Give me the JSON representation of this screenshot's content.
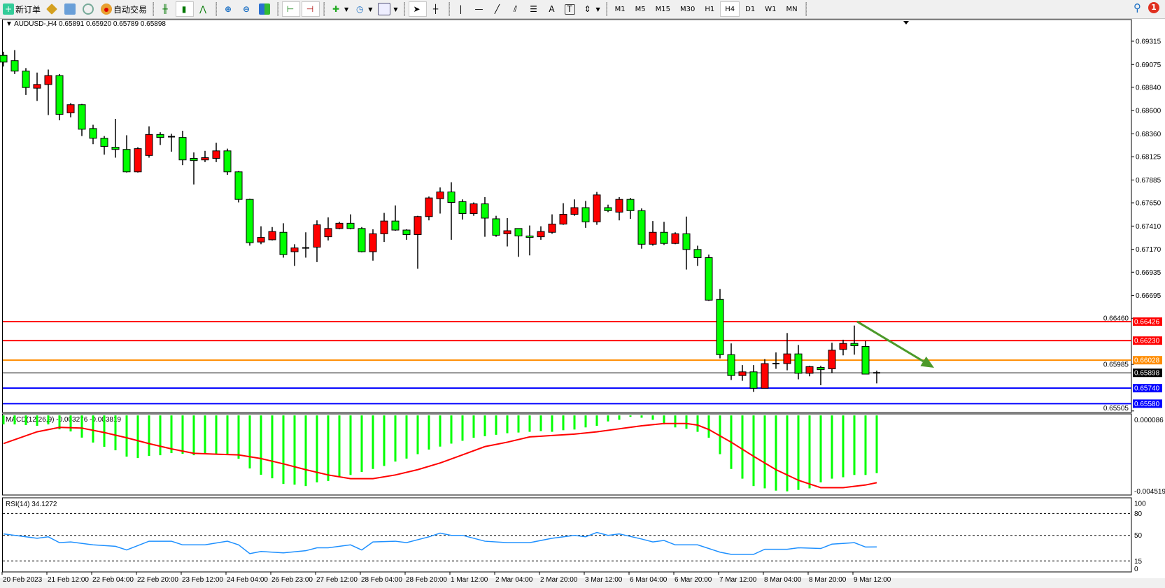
{
  "toolbar": {
    "new_order": "新订单",
    "auto_trading": "自动交易",
    "timeframes": [
      "M1",
      "M5",
      "M15",
      "M30",
      "H1",
      "H4",
      "D1",
      "W1",
      "MN"
    ],
    "active_timeframe": "H4",
    "notification_count": "1",
    "icons": [
      "gold-icon",
      "history-icon",
      "signal-icon",
      "bar-chart-icon",
      "candlestick-icon",
      "line-chart-icon",
      "zoom-in-icon",
      "zoom-out-icon",
      "tile-windows-icon",
      "auto-scroll-icon",
      "chart-shift-icon",
      "indicators-icon",
      "periods-icon",
      "templates-icon",
      "cursor-icon",
      "crosshair-icon",
      "vertical-line-icon",
      "horizontal-line-icon",
      "trendline-icon",
      "fibonacci-icon",
      "channel-icon",
      "text-icon",
      "text-label-icon",
      "arrows-icon"
    ]
  },
  "chart": {
    "symbol": "AUDUSD-,H4",
    "ohlc": "0.65891 0.65920 0.65789 0.65898",
    "colors": {
      "bull": "#ff0000",
      "bear": "#00ff00",
      "outline": "#000000",
      "arrow": "#4c9a2a"
    },
    "price_ticks": [
      "0.69315",
      "0.69075",
      "0.68840",
      "0.68600",
      "0.68360",
      "0.68125",
      "0.67885",
      "0.67650",
      "0.67410",
      "0.67170",
      "0.66935",
      "0.66695",
      "0.66460",
      "0.65985",
      "0.65505"
    ],
    "levels": [
      {
        "price": "0.66426",
        "color": "#ff0000"
      },
      {
        "price": "0.66230",
        "color": "#ff0000"
      },
      {
        "price": "0.66028",
        "color": "#ff8c00"
      },
      {
        "price": "0.65898",
        "color": "#000000"
      },
      {
        "price": "0.65740",
        "color": "#0000ff"
      },
      {
        "price": "0.65580",
        "color": "#0000ff"
      }
    ],
    "arrow": {
      "direction": "down",
      "from_bar": 77,
      "from_price": 0.66426,
      "to_bar": 84,
      "to_price": 0.6595
    },
    "time_labels": [
      {
        "bar": 1,
        "label": "20 Feb 2023"
      },
      {
        "bar": 5,
        "label": "21 Feb 12:00"
      },
      {
        "bar": 9,
        "label": "22 Feb 04:00"
      },
      {
        "bar": 13,
        "label": "22 Feb 20:00"
      },
      {
        "bar": 17,
        "label": "23 Feb 12:00"
      },
      {
        "bar": 21,
        "label": "24 Feb 04:00"
      },
      {
        "bar": 25,
        "label": "26 Feb 23:00"
      },
      {
        "bar": 29,
        "label": "27 Feb 12:00"
      },
      {
        "bar": 33,
        "label": "28 Feb 04:00"
      },
      {
        "bar": 37,
        "label": "28 Feb 20:00"
      },
      {
        "bar": 41,
        "label": "1 Mar 12:00"
      },
      {
        "bar": 45,
        "label": "2 Mar 04:00"
      },
      {
        "bar": 49,
        "label": "2 Mar 20:00"
      },
      {
        "bar": 53,
        "label": "3 Mar 12:00"
      },
      {
        "bar": 57,
        "label": "6 Mar 04:00"
      },
      {
        "bar": 61,
        "label": "6 Mar 20:00"
      },
      {
        "bar": 65,
        "label": "7 Mar 12:00"
      },
      {
        "bar": 69,
        "label": "8 Mar 04:00"
      },
      {
        "bar": 73,
        "label": "8 Mar 20:00"
      },
      {
        "bar": 77,
        "label": "9 Mar 12:00"
      }
    ]
  },
  "chart_data": [
    {
      "type": "candlestick",
      "ylim": [
        0.65489,
        0.69538
      ],
      "candles_ohlc": [
        [
          0.69169,
          0.69207,
          0.69054,
          0.691
        ],
        [
          0.69115,
          0.69223,
          0.68977,
          0.69007
        ],
        [
          0.69007,
          0.69038,
          0.68761,
          0.68838
        ],
        [
          0.68831,
          0.68992,
          0.687,
          0.68869
        ],
        [
          0.68869,
          0.69023,
          0.68554,
          0.68961
        ],
        [
          0.68961,
          0.68977,
          0.685,
          0.68561
        ],
        [
          0.68577,
          0.68677,
          0.68531,
          0.68661
        ],
        [
          0.68661,
          0.68669,
          0.68338,
          0.68408
        ],
        [
          0.68415,
          0.68454,
          0.68254,
          0.68315
        ],
        [
          0.68315,
          0.68338,
          0.68146,
          0.68231
        ],
        [
          0.68223,
          0.68515,
          0.68115,
          0.682
        ],
        [
          0.682,
          0.68346,
          0.67962,
          0.67969
        ],
        [
          0.67969,
          0.68223,
          0.67962,
          0.68208
        ],
        [
          0.68138,
          0.68438,
          0.68115,
          0.68354
        ],
        [
          0.68354,
          0.68377,
          0.68246,
          0.68323
        ],
        [
          0.68331,
          0.68361,
          0.68177,
          0.68323
        ],
        [
          0.68323,
          0.68392,
          0.68038,
          0.68092
        ],
        [
          0.68108,
          0.68169,
          0.67839,
          0.68085
        ],
        [
          0.68092,
          0.68185,
          0.68069,
          0.68115
        ],
        [
          0.68108,
          0.68269,
          0.68069,
          0.68185
        ],
        [
          0.68185,
          0.68208,
          0.67938,
          0.67969
        ],
        [
          0.67969,
          0.67977,
          0.67654,
          0.67685
        ],
        [
          0.67685,
          0.67692,
          0.67208,
          0.67239
        ],
        [
          0.67246,
          0.67408,
          0.67223,
          0.67293
        ],
        [
          0.67269,
          0.674,
          0.67262,
          0.67354
        ],
        [
          0.67346,
          0.67439,
          0.67085,
          0.67116
        ],
        [
          0.67146,
          0.67223,
          0.67,
          0.67185
        ],
        [
          0.67185,
          0.67346,
          0.67085,
          0.67177
        ],
        [
          0.67193,
          0.67469,
          0.67039,
          0.67423
        ],
        [
          0.673,
          0.675,
          0.67262,
          0.67385
        ],
        [
          0.67385,
          0.67454,
          0.67377,
          0.67439
        ],
        [
          0.67439,
          0.67531,
          0.67377,
          0.67385
        ],
        [
          0.67385,
          0.674,
          0.67139,
          0.67146
        ],
        [
          0.67146,
          0.67377,
          0.67054,
          0.67331
        ],
        [
          0.67331,
          0.67546,
          0.67246,
          0.67462
        ],
        [
          0.67462,
          0.67623,
          0.67362,
          0.67369
        ],
        [
          0.67369,
          0.67377,
          0.67269,
          0.67323
        ],
        [
          0.67323,
          0.67516,
          0.6697,
          0.67508
        ],
        [
          0.67508,
          0.67715,
          0.67469,
          0.677
        ],
        [
          0.67692,
          0.67808,
          0.67539,
          0.67762
        ],
        [
          0.67762,
          0.67862,
          0.67269,
          0.67654
        ],
        [
          0.67662,
          0.67685,
          0.67477,
          0.67539
        ],
        [
          0.67539,
          0.67654,
          0.67516,
          0.67639
        ],
        [
          0.67639,
          0.67708,
          0.673,
          0.67492
        ],
        [
          0.67485,
          0.67516,
          0.673,
          0.67316
        ],
        [
          0.67331,
          0.67492,
          0.672,
          0.67362
        ],
        [
          0.67385,
          0.67385,
          0.67093,
          0.67308
        ],
        [
          0.67308,
          0.67416,
          0.67108,
          0.67293
        ],
        [
          0.673,
          0.67408,
          0.67269,
          0.67354
        ],
        [
          0.67346,
          0.67531,
          0.67331,
          0.67431
        ],
        [
          0.67431,
          0.67646,
          0.67423,
          0.67531
        ],
        [
          0.67531,
          0.67685,
          0.67516,
          0.676
        ],
        [
          0.676,
          0.67669,
          0.67392,
          0.67454
        ],
        [
          0.67454,
          0.67762,
          0.67423,
          0.67731
        ],
        [
          0.676,
          0.67631,
          0.67554,
          0.67569
        ],
        [
          0.67554,
          0.67708,
          0.67469,
          0.67685
        ],
        [
          0.67685,
          0.677,
          0.67485,
          0.67569
        ],
        [
          0.67569,
          0.67592,
          0.67177,
          0.67223
        ],
        [
          0.67223,
          0.67462,
          0.67208,
          0.67346
        ],
        [
          0.67346,
          0.67454,
          0.67216,
          0.67231
        ],
        [
          0.67231,
          0.67346,
          0.67223,
          0.67331
        ],
        [
          0.67331,
          0.67508,
          0.66962,
          0.67169
        ],
        [
          0.67169,
          0.67208,
          0.67,
          0.67085
        ],
        [
          0.67085,
          0.67116,
          0.66639,
          0.66647
        ],
        [
          0.66654,
          0.66762,
          0.66047,
          0.66085
        ],
        [
          0.66085,
          0.66201,
          0.65824,
          0.6587
        ],
        [
          0.6587,
          0.65978,
          0.65816,
          0.65908
        ],
        [
          0.65908,
          0.65978,
          0.65701,
          0.65739
        ],
        [
          0.65739,
          0.66039,
          0.65739,
          0.65993
        ],
        [
          0.65993,
          0.66108,
          0.65939,
          0.65993
        ],
        [
          0.65993,
          0.66308,
          0.65924,
          0.66093
        ],
        [
          0.66093,
          0.66185,
          0.65831,
          0.65893
        ],
        [
          0.65893,
          0.6597,
          0.65862,
          0.65962
        ],
        [
          0.65954,
          0.6597,
          0.6577,
          0.65931
        ],
        [
          0.65939,
          0.66208,
          0.65893,
          0.66131
        ],
        [
          0.66139,
          0.66239,
          0.66078,
          0.66201
        ],
        [
          0.66201,
          0.66385,
          0.66085,
          0.66177
        ],
        [
          0.6617,
          0.66224,
          0.65885,
          0.65885
        ],
        [
          0.65891,
          0.6592,
          0.65789,
          0.65898
        ]
      ]
    },
    {
      "type": "bar",
      "title": "MACD(12,26,9) -0.003276 -0.003819",
      "ylim": [
        -0.004519,
        8.6e-05
      ],
      "ytick_labels": [
        "0.000086",
        "-0.004519"
      ],
      "macd": [
        -0.00051,
        -0.00051,
        -0.00055,
        -0.00059,
        -0.00051,
        -0.00079,
        -0.00091,
        -0.00126,
        -0.00154,
        -0.00178,
        -0.00198,
        -0.00234,
        -0.00242,
        -0.0023,
        -0.00226,
        -0.00214,
        -0.00218,
        -0.00226,
        -0.00218,
        -0.00218,
        -0.00218,
        -0.00246,
        -0.00301,
        -0.00337,
        -0.00357,
        -0.00389,
        -0.00393,
        -0.00401,
        -0.0038,
        -0.00372,
        -0.00351,
        -0.00338,
        -0.00321,
        -0.00304,
        -0.00287,
        -0.00262,
        -0.00245,
        -0.0022,
        -0.00194,
        -0.00177,
        -0.0016,
        -0.00144,
        -0.00127,
        -0.00118,
        -0.0011,
        -0.00101,
        -0.00097,
        -0.00093,
        -0.00089,
        -0.00093,
        -0.00084,
        -0.0008,
        -0.00068,
        -0.00059,
        -0.00034,
        -0.00025,
        -8e-05,
        -0.00013,
        -0.00025,
        -0.00051,
        -0.00068,
        -0.00076,
        -0.00093,
        -0.00127,
        -0.0022,
        -0.00304,
        -0.00359,
        -0.00401,
        -0.00414,
        -0.00427,
        -0.00431,
        -0.00423,
        -0.00414,
        -0.0038,
        -0.00359,
        -0.00351,
        -0.00338,
        -0.00338,
        -0.003276
      ],
      "signal": [
        [
          1,
          -0.0016
        ],
        [
          4,
          -0.00093
        ],
        [
          6,
          -0.00068
        ],
        [
          8,
          -0.00072
        ],
        [
          10,
          -0.00097
        ],
        [
          12,
          -0.00127
        ],
        [
          14,
          -0.0016
        ],
        [
          16,
          -0.0019
        ],
        [
          18,
          -0.00215
        ],
        [
          20,
          -0.0022
        ],
        [
          22,
          -0.00224
        ],
        [
          24,
          -0.00245
        ],
        [
          26,
          -0.00275
        ],
        [
          28,
          -0.00308
        ],
        [
          30,
          -0.00338
        ],
        [
          32,
          -0.00359
        ],
        [
          34,
          -0.00359
        ],
        [
          36,
          -0.00338
        ],
        [
          38,
          -0.00308
        ],
        [
          40,
          -0.0027
        ],
        [
          42,
          -0.00224
        ],
        [
          44,
          -0.00177
        ],
        [
          46,
          -0.00152
        ],
        [
          48,
          -0.00122
        ],
        [
          50,
          -0.00114
        ],
        [
          52,
          -0.00106
        ],
        [
          54,
          -0.00093
        ],
        [
          56,
          -0.00076
        ],
        [
          58,
          -0.00059
        ],
        [
          60,
          -0.00046
        ],
        [
          62,
          -0.00046
        ],
        [
          63,
          -0.00055
        ],
        [
          64,
          -0.0008
        ],
        [
          66,
          -0.00152
        ],
        [
          68,
          -0.00232
        ],
        [
          70,
          -0.00308
        ],
        [
          72,
          -0.00368
        ],
        [
          74,
          -0.0041
        ],
        [
          76,
          -0.0041
        ],
        [
          78,
          -0.00395
        ],
        [
          79,
          -0.003819
        ]
      ],
      "colors": {
        "histogram": "#00ff00",
        "signal": "#ff0000"
      }
    },
    {
      "type": "line",
      "title": "RSI(14) 34.1272",
      "ylim": [
        0,
        100
      ],
      "levels": [
        "80",
        "50",
        "15"
      ],
      "ytick_labels": [
        "100",
        "80",
        "50",
        "15",
        "0"
      ],
      "color": "#1e90ff",
      "points": [
        [
          1,
          52
        ],
        [
          3,
          48
        ],
        [
          4,
          46
        ],
        [
          5,
          48
        ],
        [
          6,
          40
        ],
        [
          7,
          41
        ],
        [
          9,
          37
        ],
        [
          11,
          35
        ],
        [
          12,
          30
        ],
        [
          14,
          42
        ],
        [
          16,
          42
        ],
        [
          17,
          37
        ],
        [
          19,
          37
        ],
        [
          21,
          42
        ],
        [
          22,
          37
        ],
        [
          23,
          25
        ],
        [
          24,
          28
        ],
        [
          26,
          26
        ],
        [
          28,
          29
        ],
        [
          29,
          33
        ],
        [
          30,
          33
        ],
        [
          32,
          37
        ],
        [
          33,
          30
        ],
        [
          34,
          41
        ],
        [
          36,
          42
        ],
        [
          37,
          40
        ],
        [
          39,
          48
        ],
        [
          40,
          53
        ],
        [
          41,
          50
        ],
        [
          42,
          50
        ],
        [
          44,
          42
        ],
        [
          46,
          40
        ],
        [
          48,
          40
        ],
        [
          50,
          46
        ],
        [
          52,
          50
        ],
        [
          53,
          48
        ],
        [
          54,
          54
        ],
        [
          55,
          50
        ],
        [
          56,
          52
        ],
        [
          58,
          45
        ],
        [
          59,
          41
        ],
        [
          60,
          43
        ],
        [
          61,
          37
        ],
        [
          63,
          37
        ],
        [
          65,
          27
        ],
        [
          66,
          24
        ],
        [
          68,
          24
        ],
        [
          69,
          31
        ],
        [
          71,
          31
        ],
        [
          72,
          33
        ],
        [
          74,
          32
        ],
        [
          75,
          38
        ],
        [
          76,
          39
        ],
        [
          77,
          40
        ],
        [
          78,
          34
        ],
        [
          79,
          34.1272
        ]
      ]
    }
  ]
}
